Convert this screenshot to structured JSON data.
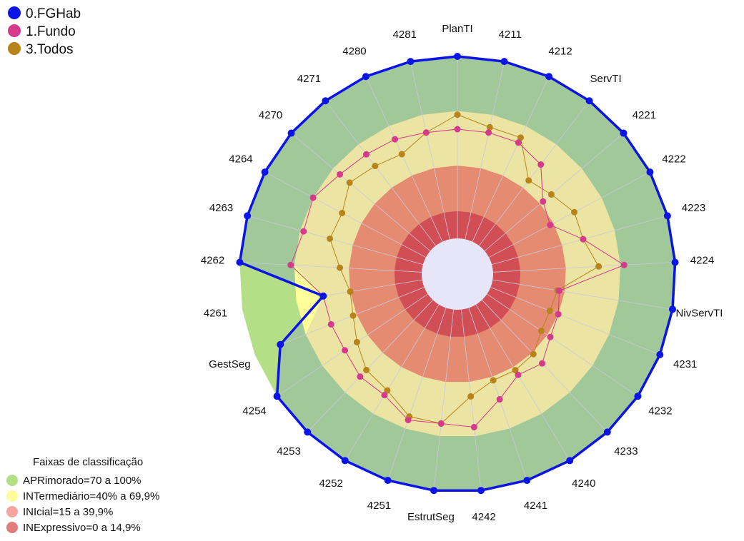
{
  "chart_data": {
    "type": "radar",
    "axes": [
      "PlanTI",
      "4211",
      "4212",
      "ServTI",
      "4221",
      "4222",
      "4223",
      "4224",
      "NivServTI",
      "4231",
      "4232",
      "4233",
      "4240",
      "4241",
      "4242",
      "EstrutSeg",
      "4251",
      "4252",
      "4253",
      "4254",
      "GestSeg",
      "4261",
      "4262",
      "4263",
      "4264",
      "4270",
      "4271",
      "4280",
      "4281"
    ],
    "rlim": [
      0,
      100
    ],
    "series": [
      {
        "name": "0.FGHab",
        "color": "#0a14e6",
        "values": [
          100,
          100,
          100,
          100,
          100,
          100,
          100,
          100,
          100,
          100,
          100,
          100,
          100,
          100,
          100,
          100,
          100,
          100,
          100,
          100,
          85,
          55,
          100,
          100,
          100,
          100,
          100,
          100,
          100
        ]
      },
      {
        "name": "1.Fundo",
        "color": "#d63a8a",
        "values": [
          60,
          60,
          60,
          56,
          42,
          38,
          52,
          72,
          37,
          40,
          42,
          48,
          45,
          53,
          65,
          63,
          65,
          58,
          58,
          55,
          55,
          55,
          72,
          68,
          70,
          65,
          63,
          62,
          60
        ]
      },
      {
        "name": "3.Todos",
        "color": "#b8841a",
        "values": [
          68,
          63,
          63,
          45,
          48,
          53,
          52,
          58,
          36,
          35,
          36,
          41,
          42,
          42,
          48,
          63,
          63,
          55,
          53,
          47,
          42,
          40,
          45,
          53,
          52,
          58,
          55,
          53,
          60
        ]
      }
    ],
    "bands": [
      {
        "label": "APRimorado=70 a 100%",
        "from": 70,
        "to": 100,
        "legend_color": "#b4df86",
        "fill_color": "#a0c898"
      },
      {
        "label": "INTermediário=40% a 69,9%",
        "from": 40,
        "to": 70,
        "legend_color": "#fdfd9c",
        "fill_color": "#ebe4a3"
      },
      {
        "label": "INIcial=15 a 39,9%",
        "from": 15,
        "to": 40,
        "legend_color": "#f7a3a0",
        "fill_color": "#e58b72"
      },
      {
        "label": "INExpressivo=0 a 14,9%",
        "from": 0,
        "to": 15,
        "legend_color": "#e07c7c",
        "fill_color": "#d24e55"
      }
    ],
    "bands_title": "Faixas de classificação",
    "center_color": "#e6e6f8",
    "band_overlay_color": "#ffff99",
    "gap_overlay_color": "#b4df86",
    "legend_position": "top-left",
    "bands_legend_position": "bottom-left"
  }
}
